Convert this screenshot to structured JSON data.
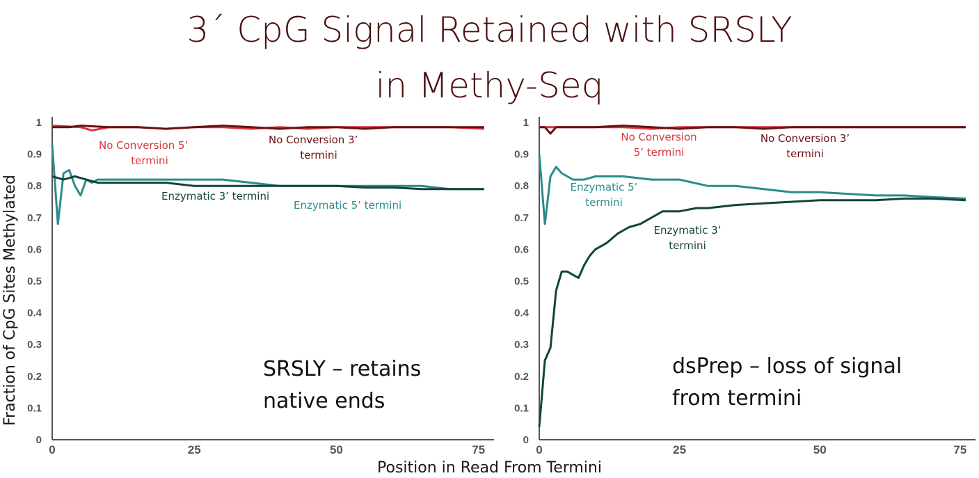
{
  "title_line1": "3´ CpG Signal Retained with SRSLY",
  "title_line2": "in Methy-Seq",
  "ylabel": "Fraction of CpG Sites Methylated",
  "xlabel": "Position in Read From Termini",
  "colors": {
    "no_conversion_5": "#d9363e",
    "no_conversion_3": "#6b1010",
    "enzymatic_5": "#2b8c8c",
    "enzymatic_3": "#11453c",
    "title": "#4a0f0f"
  },
  "chart_data": [
    {
      "type": "line",
      "panel": "left",
      "xlim": [
        0,
        77
      ],
      "ylim": [
        0,
        1
      ],
      "xticks": [
        "0",
        "25",
        "50",
        "75"
      ],
      "yticks": [
        "0",
        "0.1",
        "0.2",
        "0.3",
        "0.4",
        "0.5",
        "0.6",
        "0.7",
        "0.8",
        "0.9",
        "1"
      ],
      "annotation": [
        "SRSLY – retains",
        "native ends"
      ],
      "series": [
        {
          "key": "nc5",
          "name_lines": [
            "No Conversion 5’",
            "termini"
          ],
          "x": [
            0,
            5,
            7,
            10,
            15,
            20,
            25,
            30,
            35,
            40,
            45,
            50,
            55,
            60,
            65,
            70,
            76
          ],
          "y": [
            0.99,
            0.985,
            0.975,
            0.985,
            0.985,
            0.98,
            0.985,
            0.985,
            0.98,
            0.985,
            0.98,
            0.985,
            0.985,
            0.985,
            0.985,
            0.985,
            0.98
          ]
        },
        {
          "key": "nc3",
          "name_lines": [
            "No Conversion 3’",
            "termini"
          ],
          "x": [
            0,
            3,
            5,
            10,
            15,
            20,
            25,
            30,
            35,
            40,
            45,
            50,
            55,
            60,
            65,
            70,
            76
          ],
          "y": [
            0.985,
            0.985,
            0.99,
            0.985,
            0.985,
            0.98,
            0.985,
            0.99,
            0.985,
            0.98,
            0.985,
            0.985,
            0.98,
            0.985,
            0.985,
            0.985,
            0.985
          ]
        },
        {
          "key": "e5",
          "name_lines": [
            "Enzymatic 5’ termini"
          ],
          "x": [
            0,
            1,
            2,
            3,
            4,
            5,
            6,
            7,
            8,
            10,
            12,
            15,
            20,
            25,
            30,
            35,
            40,
            45,
            50,
            55,
            60,
            65,
            70,
            76
          ],
          "y": [
            0.93,
            0.68,
            0.84,
            0.85,
            0.8,
            0.77,
            0.82,
            0.81,
            0.82,
            0.82,
            0.82,
            0.82,
            0.82,
            0.82,
            0.82,
            0.81,
            0.8,
            0.8,
            0.8,
            0.8,
            0.8,
            0.8,
            0.79,
            0.79
          ]
        },
        {
          "key": "e3",
          "name_lines": [
            "Enzymatic 3’ termini"
          ],
          "x": [
            0,
            2,
            4,
            6,
            8,
            10,
            12,
            15,
            20,
            25,
            30,
            35,
            40,
            45,
            50,
            55,
            60,
            65,
            70,
            76
          ],
          "y": [
            0.83,
            0.82,
            0.83,
            0.82,
            0.81,
            0.81,
            0.81,
            0.81,
            0.81,
            0.8,
            0.8,
            0.8,
            0.8,
            0.8,
            0.8,
            0.795,
            0.795,
            0.79,
            0.79,
            0.79
          ]
        }
      ]
    },
    {
      "type": "line",
      "panel": "right",
      "xlim": [
        0,
        77
      ],
      "ylim": [
        0,
        1
      ],
      "xticks": [
        "0",
        "25",
        "50",
        "75"
      ],
      "yticks": [
        "0",
        "0.1",
        "0.2",
        "0.3",
        "0.4",
        "0.5",
        "0.6",
        "0.7",
        "0.8",
        "0.9",
        "1"
      ],
      "annotation": [
        "dsPrep – loss of signal",
        "from termini"
      ],
      "series": [
        {
          "key": "nc5",
          "name_lines": [
            "No Conversion",
            "5’ termini"
          ],
          "x": [
            0,
            5,
            10,
            15,
            20,
            25,
            30,
            35,
            40,
            45,
            50,
            55,
            60,
            65,
            70,
            76
          ],
          "y": [
            0.985,
            0.985,
            0.985,
            0.985,
            0.98,
            0.985,
            0.985,
            0.985,
            0.985,
            0.985,
            0.985,
            0.985,
            0.985,
            0.985,
            0.985,
            0.985
          ]
        },
        {
          "key": "nc3",
          "name_lines": [
            "No Conversion 3’",
            "termini"
          ],
          "x": [
            0,
            1,
            2,
            3,
            5,
            10,
            15,
            20,
            25,
            30,
            35,
            40,
            45,
            50,
            55,
            60,
            65,
            70,
            76
          ],
          "y": [
            0.985,
            0.985,
            0.965,
            0.985,
            0.985,
            0.985,
            0.99,
            0.985,
            0.98,
            0.985,
            0.985,
            0.98,
            0.985,
            0.985,
            0.985,
            0.985,
            0.985,
            0.985,
            0.985
          ]
        },
        {
          "key": "e5",
          "name_lines": [
            "Enzymatic 5’",
            "termini"
          ],
          "x": [
            0,
            1,
            2,
            3,
            4,
            5,
            6,
            8,
            10,
            15,
            20,
            25,
            30,
            35,
            40,
            45,
            50,
            55,
            60,
            65,
            70,
            76
          ],
          "y": [
            0.9,
            0.68,
            0.83,
            0.86,
            0.84,
            0.83,
            0.82,
            0.82,
            0.83,
            0.83,
            0.82,
            0.82,
            0.8,
            0.8,
            0.79,
            0.78,
            0.78,
            0.775,
            0.77,
            0.77,
            0.765,
            0.76
          ]
        },
        {
          "key": "e3",
          "name_lines": [
            "Enzymatic 3’",
            "termini"
          ],
          "x": [
            0,
            1,
            2,
            3,
            4,
            5,
            6,
            7,
            8,
            9,
            10,
            12,
            14,
            16,
            18,
            20,
            22,
            25,
            28,
            30,
            35,
            40,
            45,
            50,
            55,
            60,
            65,
            70,
            76
          ],
          "y": [
            0.04,
            0.25,
            0.29,
            0.47,
            0.53,
            0.53,
            0.52,
            0.51,
            0.55,
            0.58,
            0.6,
            0.62,
            0.65,
            0.67,
            0.68,
            0.7,
            0.72,
            0.72,
            0.73,
            0.73,
            0.74,
            0.745,
            0.75,
            0.755,
            0.755,
            0.755,
            0.76,
            0.76,
            0.755
          ]
        }
      ]
    }
  ]
}
